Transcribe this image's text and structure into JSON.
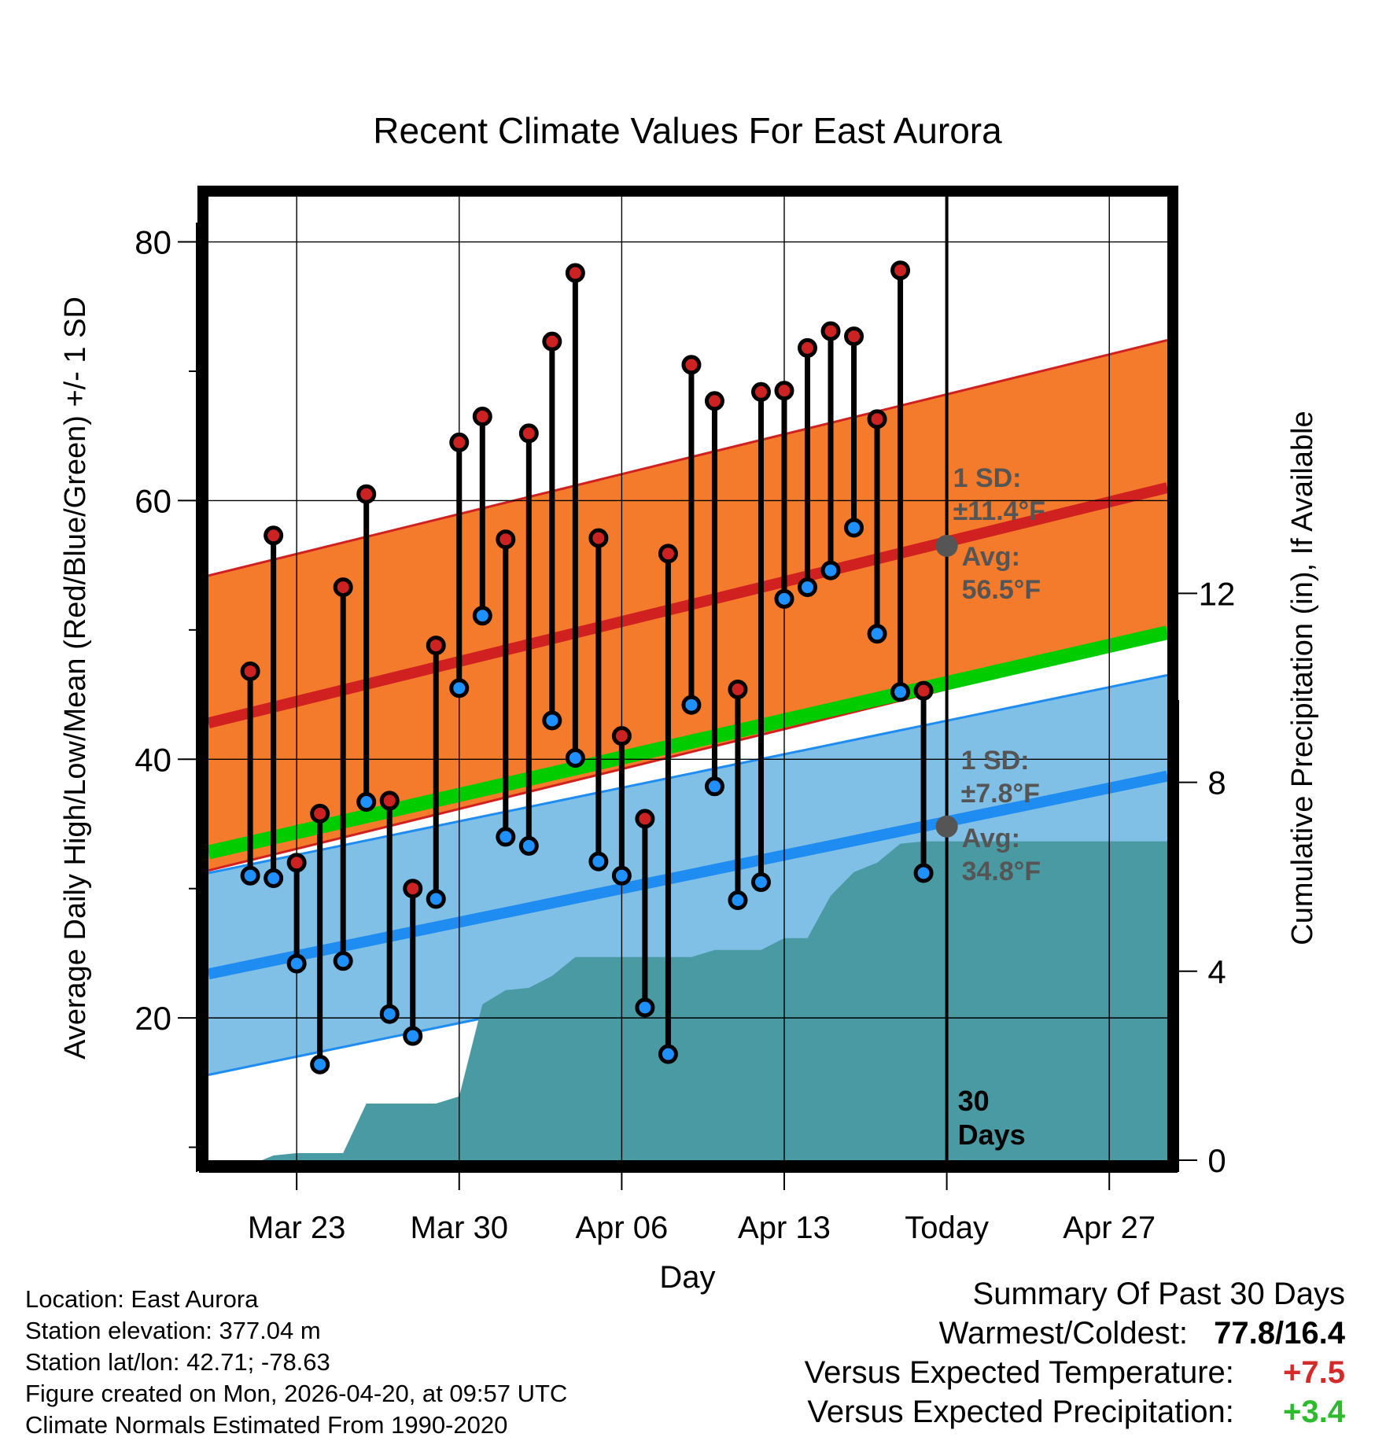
{
  "chart_data": {
    "type": "line",
    "title": "Recent Climate Values For East Aurora",
    "xlabel": "Day",
    "ylabel": "Average Daily High/Low/Mean (Red/Blue/Green) +/- 1 SD",
    "y2label": "Cumulative Precipitation (in), If Available",
    "xlim": [
      -0.8,
      40.5
    ],
    "ylim": [
      9,
      83.5
    ],
    "y2lim": [
      0,
      20.4
    ],
    "yticks": [
      80,
      60,
      40,
      20
    ],
    "y2ticks": [
      12,
      8,
      4,
      0
    ],
    "xtick_labels": [
      {
        "day": 3,
        "label": "Mar 23"
      },
      {
        "day": 10,
        "label": "Mar 30"
      },
      {
        "day": 17,
        "label": "Apr 06"
      },
      {
        "day": 24,
        "label": "Apr 13"
      },
      {
        "day": 31,
        "label": "Today"
      },
      {
        "day": 38,
        "label": "Apr 27"
      }
    ],
    "highs": [
      46.8,
      57.3,
      32.0,
      35.8,
      53.3,
      60.5,
      36.8,
      30.0,
      48.8,
      64.5,
      66.5,
      57.0,
      65.2,
      72.3,
      77.6,
      57.1,
      41.8,
      35.4,
      55.9,
      70.5,
      67.7,
      45.4,
      68.4,
      68.5,
      71.8,
      73.1,
      72.7,
      66.3,
      77.8,
      45.3
    ],
    "lows": [
      31.0,
      30.8,
      24.2,
      16.4,
      24.4,
      36.7,
      20.3,
      18.6,
      29.2,
      45.5,
      51.1,
      34.0,
      33.3,
      43.0,
      40.1,
      32.1,
      31.0,
      20.8,
      17.2,
      44.2,
      37.9,
      29.1,
      30.5,
      52.4,
      53.3,
      54.6,
      57.9,
      49.7,
      45.2,
      31.2
    ],
    "normals": {
      "high_avg_range": [
        42.8,
        61.0
      ],
      "low_avg_range": [
        23.4,
        38.7
      ],
      "mean_range": [
        32.8,
        49.8
      ],
      "high_sd_label": "1 SD:",
      "high_sd_value": "±11.4°F",
      "high_avg_label": "Avg:",
      "high_avg_value": "56.5°F",
      "low_sd_label": "1 SD:",
      "low_sd_value": "±7.8°F",
      "low_avg_label": "Avg:",
      "low_avg_value": "34.8°F",
      "high_sd": 11.4,
      "low_sd": 7.8,
      "high_avg_today": 56.5,
      "low_avg_today": 34.8
    },
    "precip_cumulative": [
      {
        "day": 0,
        "value": 0.0
      },
      {
        "day": 1.5,
        "value": 0.0
      },
      {
        "day": 2.0,
        "value": 0.1
      },
      {
        "day": 3.0,
        "value": 0.15
      },
      {
        "day": 4.0,
        "value": 0.15
      },
      {
        "day": 5.0,
        "value": 0.15
      },
      {
        "day": 6.0,
        "value": 1.2
      },
      {
        "day": 7.0,
        "value": 1.2
      },
      {
        "day": 8.0,
        "value": 1.2
      },
      {
        "day": 9.0,
        "value": 1.2
      },
      {
        "day": 10.0,
        "value": 1.35
      },
      {
        "day": 11.0,
        "value": 3.3
      },
      {
        "day": 12.0,
        "value": 3.6
      },
      {
        "day": 13.0,
        "value": 3.65
      },
      {
        "day": 14.0,
        "value": 3.9
      },
      {
        "day": 15.0,
        "value": 4.3
      },
      {
        "day": 16.0,
        "value": 4.3
      },
      {
        "day": 17.0,
        "value": 4.3
      },
      {
        "day": 18.0,
        "value": 4.3
      },
      {
        "day": 19.0,
        "value": 4.3
      },
      {
        "day": 20.0,
        "value": 4.3
      },
      {
        "day": 21.0,
        "value": 4.45
      },
      {
        "day": 22.0,
        "value": 4.45
      },
      {
        "day": 23.0,
        "value": 4.45
      },
      {
        "day": 24.0,
        "value": 4.7
      },
      {
        "day": 25.0,
        "value": 4.7
      },
      {
        "day": 26.0,
        "value": 5.6
      },
      {
        "day": 27.0,
        "value": 6.1
      },
      {
        "day": 28.0,
        "value": 6.3
      },
      {
        "day": 29.0,
        "value": 6.7
      },
      {
        "day": 30.0,
        "value": 6.75
      },
      {
        "day": 31.0,
        "value": 6.75
      },
      {
        "day": 40.5,
        "value": 6.75
      }
    ],
    "today_day": 31,
    "today_label": [
      "30",
      "Days"
    ]
  },
  "info": {
    "location": "Location: East Aurora",
    "elevation": "Station elevation: 377.04 m",
    "latlon": "Station lat/lon: 42.71; -78.63",
    "created": "Figure created on Mon, 2026-04-20, at 09:57 UTC",
    "normals": "Climate Normals Estimated From 1990-2020"
  },
  "summary": {
    "title": "Summary Of Past 30 Days",
    "warm_cold_label": "Warmest/Coldest:",
    "warm_cold_value": "77.8/16.4",
    "temp_label": "Versus Expected Temperature:",
    "temp_value": "+7.5",
    "temp_color": "#d42a2a",
    "precip_label": "Versus Expected Precipitation:",
    "precip_value": "+3.4",
    "precip_color": "#2dbb2d"
  },
  "colors": {
    "high_band": "#f47b2c",
    "high_line": "#d02020",
    "low_band": "#80bfe6",
    "low_line": "#1e8cf0",
    "mean_line": "#00cc00",
    "precip": "#4a9aa4",
    "high_dot": "#cc2222",
    "low_dot": "#1e90ff",
    "anno": "#555555"
  }
}
